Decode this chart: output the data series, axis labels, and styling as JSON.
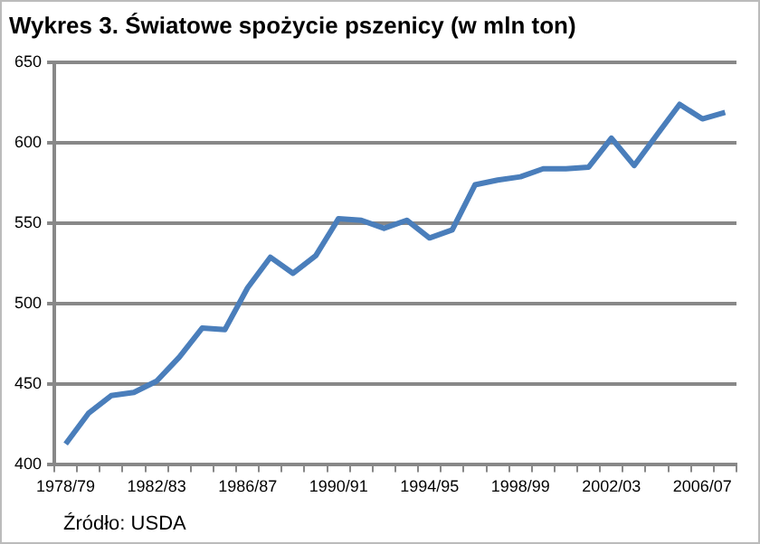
{
  "chart_data": {
    "type": "line",
    "title": "Wykres 3. Światowe spożycie pszenicy (w mln ton)",
    "categories": [
      "1978/79",
      null,
      null,
      null,
      "1982/83",
      null,
      null,
      null,
      "1986/87",
      null,
      null,
      null,
      "1990/91",
      null,
      null,
      null,
      "1994/95",
      null,
      null,
      null,
      "1998/99",
      null,
      null,
      null,
      "2002/03",
      null,
      null,
      null,
      "2006/07",
      null
    ],
    "series": [
      {
        "color": "#4a7ebb",
        "values": [
          413,
          432,
          443,
          445,
          452,
          467,
          485,
          484,
          510,
          529,
          519,
          530,
          553,
          552,
          547,
          552,
          541,
          546,
          574,
          577,
          579,
          584,
          584,
          585,
          603,
          586,
          605,
          624,
          615,
          619
        ]
      }
    ],
    "ylim": [
      400,
      650
    ],
    "yticks": [
      400,
      450,
      500,
      550,
      600,
      650
    ],
    "grid": "y",
    "legend": false,
    "marker": "none",
    "line_style": "solid",
    "annotations": [
      "Źródło: USDA"
    ]
  }
}
